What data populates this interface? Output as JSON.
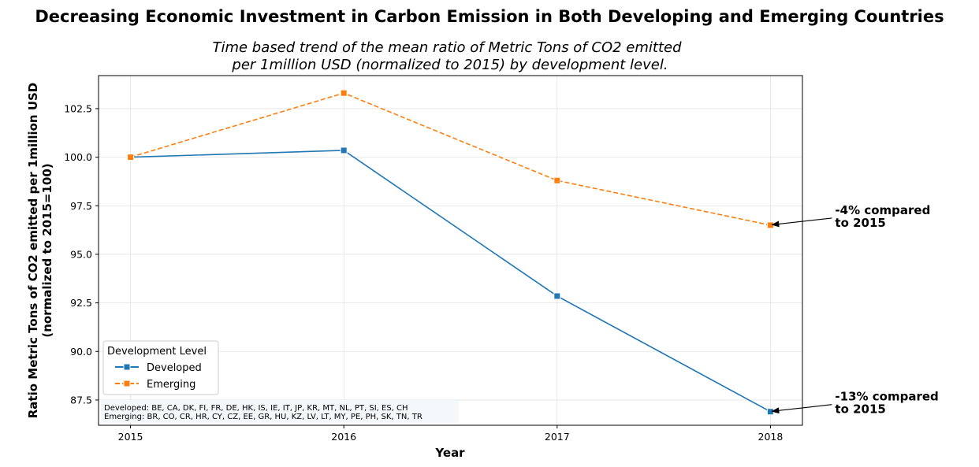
{
  "figure": {
    "title": "Decreasing Economic Investment in Carbon Emission in Both Developing and Emerging Countries"
  },
  "chart_data": {
    "type": "line",
    "title_lines": [
      "Time based trend of the mean ratio of Metric Tons of CO2 emitted",
      "per 1million USD (normalized to 2015) by development level."
    ],
    "xlabel": "Year",
    "ylabel_lines": [
      "Ratio Metric Tons of CO2 emitted per 1million USD",
      "(normalized to 2015=100)"
    ],
    "x": [
      2015,
      2016,
      2017,
      2018
    ],
    "xticks": [
      "2015",
      "2016",
      "2017",
      "2018"
    ],
    "xlim": [
      2014.85,
      2018.15
    ],
    "ylim": [
      86.2,
      104.2
    ],
    "yticks": [
      "87.5",
      "90.0",
      "92.5",
      "95.0",
      "97.5",
      "100.0",
      "102.5"
    ],
    "grid": true,
    "series": [
      {
        "name": "Developed",
        "values": [
          100.0,
          100.35,
          92.85,
          86.9
        ],
        "color": "#1f77b4",
        "linestyle": "solid",
        "marker": "square"
      },
      {
        "name": "Emerging",
        "values": [
          100.0,
          103.3,
          98.8,
          96.5
        ],
        "color": "#ff7f0e",
        "linestyle": "dashed",
        "marker": "square"
      }
    ],
    "legend": {
      "title": "Development Level",
      "position": "lower-left"
    },
    "note": {
      "lines": [
        "Developed: BE, CA, DK, FI, FR, DE, HK, IS, IE, IT, JP, KR, MT, NL, PT, SI, ES, CH",
        "Emerging: BR, CO, CR, HR, CY, CZ, EE, GR, HU, KZ, LV, LT, MY, PE, PH, SK, TN, TR"
      ]
    },
    "annotations": [
      {
        "series": "Emerging",
        "x": 2018,
        "y": 96.5,
        "lines": [
          "-4% compared",
          "to 2015"
        ]
      },
      {
        "series": "Developed",
        "x": 2018,
        "y": 86.9,
        "lines": [
          "-13% compared",
          "to 2015"
        ]
      }
    ]
  }
}
